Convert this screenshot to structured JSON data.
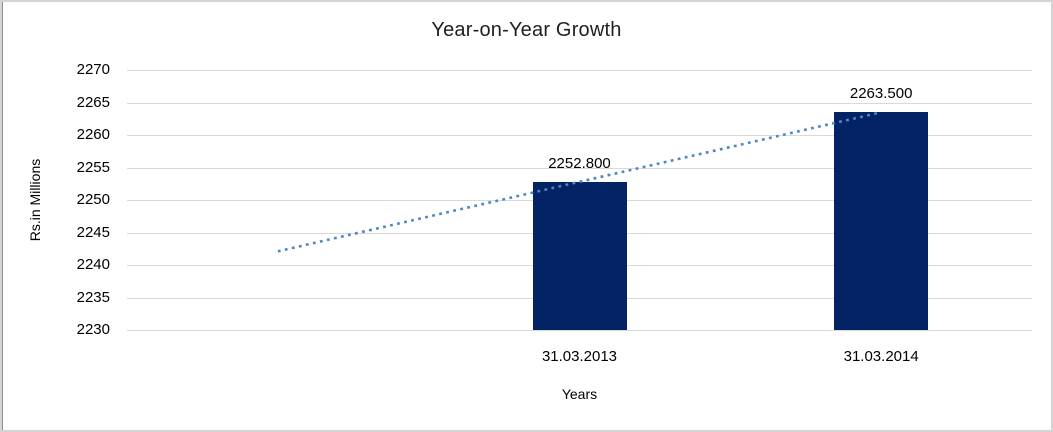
{
  "chart_data": {
    "type": "bar",
    "title": "Year-on-Year Growth",
    "xlabel": "Years",
    "ylabel": "Rs.in Millions",
    "categories": [
      "31.03.2013",
      "31.03.2014"
    ],
    "values": [
      2252.8,
      2263.5
    ],
    "value_labels": [
      "2252.800",
      "2263.500"
    ],
    "yticks": [
      2270,
      2265,
      2260,
      2255,
      2250,
      2245,
      2240,
      2235,
      2230
    ],
    "ylim": [
      2230,
      2270
    ],
    "grid": true,
    "legend": false,
    "trendline": {
      "type": "linear",
      "style": "dotted",
      "color": "#4f86c4",
      "extends_back_periods": 1
    },
    "colors": {
      "bar": "#042365",
      "gridline": "#d9d9d9",
      "text": "#000000"
    }
  }
}
